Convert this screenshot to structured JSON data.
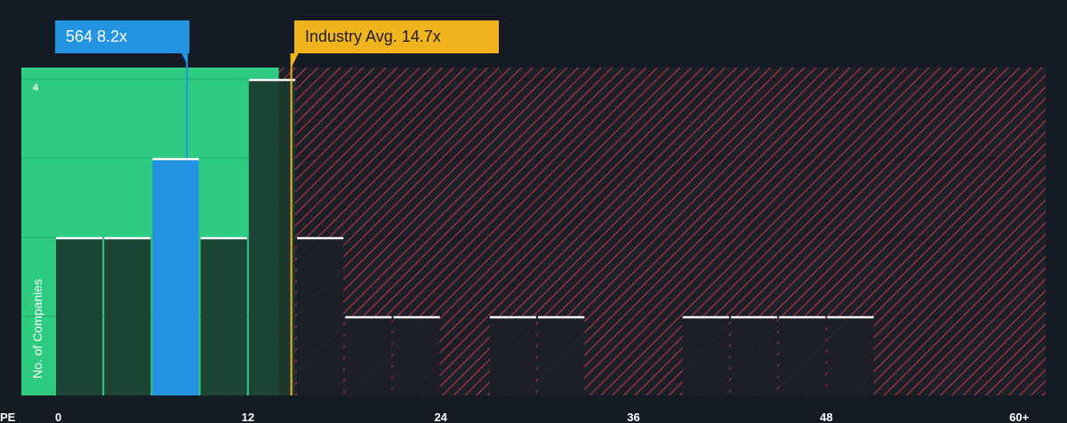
{
  "company_label": {
    "ticker": "564",
    "value": "8.2x"
  },
  "industry_label": {
    "text": "Industry Avg. 14.7x"
  },
  "colors": {
    "background": "#151b24",
    "good_zone": "#2ecc80",
    "bad_zone_hatch": "#c2363f",
    "company": "#2394e2",
    "industry": "#f0b41c",
    "bar_dark": "#1b3a2f",
    "bar_dark_red": "#1c2028"
  },
  "chart_data": {
    "type": "bar",
    "title": "",
    "xlabel": "PE",
    "ylabel": "No. of Companies",
    "xlim": [
      0,
      63
    ],
    "ylim": [
      0,
      4
    ],
    "x_ticks": [
      "0",
      "12",
      "24",
      "36",
      "48",
      "60+"
    ],
    "y_ticks": [
      "4"
    ],
    "bin_width": 3,
    "bins": [
      {
        "start": 0,
        "count": 2
      },
      {
        "start": 3,
        "count": 2
      },
      {
        "start": 6,
        "count": 3,
        "highlight": "company"
      },
      {
        "start": 9,
        "count": 2
      },
      {
        "start": 12,
        "count": 4
      },
      {
        "start": 15,
        "count": 2
      },
      {
        "start": 18,
        "count": 1
      },
      {
        "start": 21,
        "count": 1
      },
      {
        "start": 27,
        "count": 1
      },
      {
        "start": 30,
        "count": 1
      },
      {
        "start": 39,
        "count": 1
      },
      {
        "start": 42,
        "count": 1
      },
      {
        "start": 45,
        "count": 1
      },
      {
        "start": 48,
        "count": 1
      }
    ],
    "company_value": 8.2,
    "industry_avg": 14.7,
    "grid": true
  }
}
